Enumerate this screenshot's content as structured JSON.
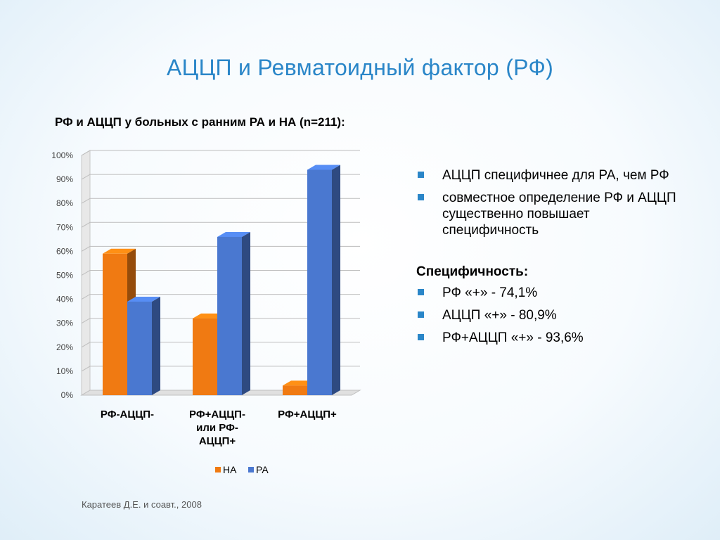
{
  "slide": {
    "title": "АЦЦП и Ревматоидный фактор (РФ)",
    "citation": "Каратеев Д.Е. и соавт., 2008"
  },
  "colors": {
    "title": "#2a86c8",
    "series_na": "#f07a12",
    "series_ra": "#4a78d0"
  },
  "chart_data": {
    "type": "bar",
    "title": "РФ и АЦЦП у больных с ранним РА и НА (n=211):",
    "categories": [
      [
        "РФ-АЦЦП-"
      ],
      [
        "РФ+АЦЦП-",
        "или РФ-",
        "АЦЦП+"
      ],
      [
        "РФ+АЦЦП+"
      ]
    ],
    "series": [
      {
        "name": "НА",
        "color": "#f07a12",
        "values": [
          59,
          32,
          4
        ]
      },
      {
        "name": "РА",
        "color": "#4a78d0",
        "values": [
          39,
          66,
          94
        ]
      }
    ],
    "y_ticks": [
      "0%",
      "10%",
      "20%",
      "30%",
      "40%",
      "50%",
      "60%",
      "70%",
      "80%",
      "90%",
      "100%"
    ],
    "ylim": [
      0,
      100
    ],
    "grid": true,
    "legend": "bottom"
  },
  "bullets": {
    "items": [
      "АЦЦП специфичнее для РА, чем РФ",
      "совместное определение РФ и АЦЦП существенно повышает специфичность"
    ],
    "spec_heading": "Специфичность:",
    "spec_items": [
      "РФ «+» - 74,1%",
      "АЦЦП «+» - 80,9%",
      "РФ+АЦЦП «+» - 93,6%"
    ]
  }
}
